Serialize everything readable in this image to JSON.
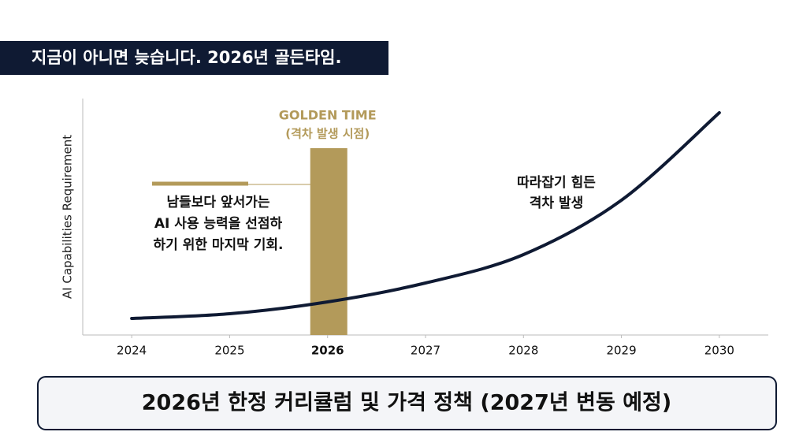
{
  "header": {
    "title": "지금이 아니면 늦습니다. 2026년 골든타임."
  },
  "chart_data": {
    "type": "line",
    "y_label": "AI Capabilities Requirement",
    "x": [
      2024,
      2025,
      2026,
      2027,
      2028,
      2029,
      2030
    ],
    "values": [
      7,
      9,
      14,
      22,
      34,
      57,
      94
    ],
    "color": "#0f1a33",
    "xlim": [
      2023.5,
      2030.5
    ],
    "xticks": [
      2024,
      2025,
      2026,
      2027,
      2028,
      2029,
      2030
    ],
    "ylim": [
      0,
      100
    ],
    "highlight": {
      "x": 2026,
      "title": "GOLDEN TIME",
      "subtitle": "(격차 발생 시점)",
      "color": "#b39a5a"
    },
    "annotation_left": [
      "남들보다 앞서가는",
      "AI 사용 능력을 선점하",
      "하기 위한 마지막 기회."
    ],
    "annotation_right": [
      "따라잡기 힘든",
      "격차 발생"
    ]
  },
  "footer": {
    "text": "2026년 한정 커리큘럼 및 가격 정책 (2027년 변동 예정)"
  }
}
